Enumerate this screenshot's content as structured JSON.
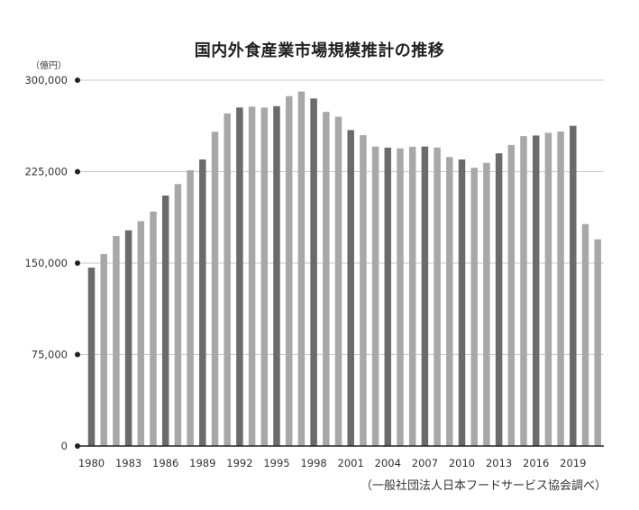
{
  "title": "国内外食産業市場規模推計の推移",
  "unit": "（億円）",
  "source": "（一般社団法人日本フードサービス協会調べ）",
  "colors": {
    "highlight": "#6b6b6d",
    "normal": "#a8a8aa",
    "grid": "#c8c8c8",
    "axis": "#222222"
  },
  "chart_data": {
    "type": "bar",
    "title": "国内外食産業市場規模推計の推移",
    "xlabel": "",
    "ylabel": "（億円）",
    "ylim": [
      0,
      300000
    ],
    "y_ticks": [
      "0",
      "75,000",
      "150,000",
      "225,000",
      "300,000"
    ],
    "y_tick_values": [
      0,
      75000,
      150000,
      225000,
      300000
    ],
    "grid": true,
    "categories": [
      "1980",
      "1981",
      "1982",
      "1983",
      "1984",
      "1985",
      "1986",
      "1987",
      "1988",
      "1989",
      "1990",
      "1991",
      "1992",
      "1993",
      "1994",
      "1995",
      "1996",
      "1997",
      "1998",
      "1999",
      "2000",
      "2001",
      "2002",
      "2003",
      "2004",
      "2005",
      "2006",
      "2007",
      "2008",
      "2009",
      "2010",
      "2011",
      "2012",
      "2013",
      "2014",
      "2015",
      "2016",
      "2017",
      "2018",
      "2019",
      "2020",
      "2021"
    ],
    "x_tick_labels": [
      "1980",
      "",
      "",
      "1983",
      "",
      "",
      "1986",
      "",
      "",
      "1989",
      "",
      "",
      "1992",
      "",
      "",
      "1995",
      "",
      "",
      "1998",
      "",
      "",
      "2001",
      "",
      "",
      "2004",
      "",
      "",
      "2007",
      "",
      "",
      "2010",
      "",
      "",
      "2013",
      "",
      "",
      "2016",
      "",
      "",
      "2019",
      "",
      ""
    ],
    "values": [
      146300,
      157400,
      172200,
      176900,
      184400,
      192300,
      205400,
      214800,
      226200,
      235000,
      257700,
      272800,
      277600,
      278300,
      277500,
      278700,
      286900,
      290700,
      285000,
      274000,
      270000,
      259100,
      254900,
      245600,
      244700,
      244100,
      245400,
      245600,
      244800,
      237000,
      235000,
      228200,
      232200,
      240000,
      246900,
      254100,
      254600,
      256900,
      257900,
      262600,
      182000,
      169500
    ]
  }
}
